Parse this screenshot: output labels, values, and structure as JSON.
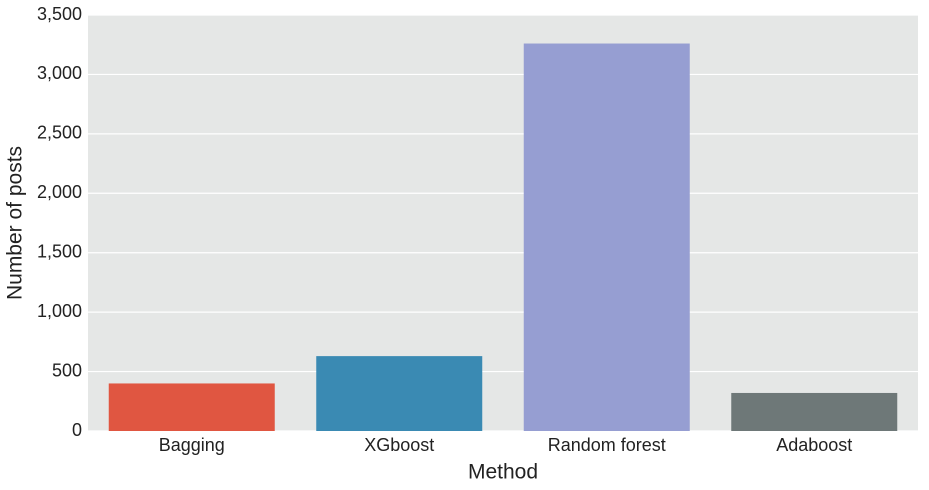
{
  "chart_data": {
    "type": "bar",
    "x_label": "Method",
    "y_label": "Number of posts",
    "categories": [
      "Bagging",
      "XGboost",
      "Random forest",
      "Adaboost"
    ],
    "values": [
      400,
      630,
      3260,
      320
    ],
    "colors": [
      "#e05641",
      "#3a8ab3",
      "#969ed2",
      "#6e7878"
    ],
    "ylim": [
      0,
      3500
    ],
    "yticks": [
      0,
      500,
      {
        "value": 1000,
        "label": "1,000"
      },
      {
        "value": 1500,
        "label": "1,500"
      },
      {
        "value": 2000,
        "label": "2,000"
      },
      {
        "value": 2500,
        "label": "2,500"
      },
      {
        "value": 3000,
        "label": "3,000"
      },
      {
        "value": 3500,
        "label": "3,500"
      }
    ],
    "grid": true
  }
}
